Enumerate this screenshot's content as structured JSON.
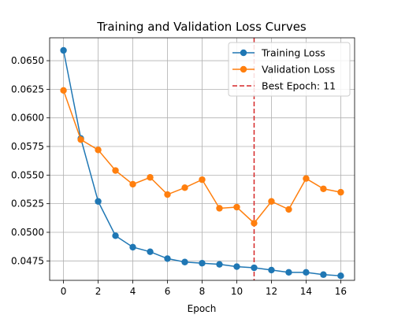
{
  "chart_data": {
    "type": "line",
    "title": "Training and Validation Loss Curves",
    "xlabel": "Epoch",
    "ylabel": "",
    "xlim": [
      -0.8,
      16.8
    ],
    "ylim": [
      0.0458,
      0.067
    ],
    "x_ticks": [
      0,
      2,
      4,
      6,
      8,
      10,
      12,
      14,
      16
    ],
    "x_tick_labels": [
      "0",
      "2",
      "4",
      "6",
      "8",
      "10",
      "12",
      "14",
      "16"
    ],
    "y_ticks": [
      0.0475,
      0.05,
      0.0525,
      0.055,
      0.0575,
      0.06,
      0.0625,
      0.065
    ],
    "y_tick_labels": [
      "0.0475",
      "0.0500",
      "0.0525",
      "0.0550",
      "0.0575",
      "0.0600",
      "0.0625",
      "0.0650"
    ],
    "grid": true,
    "legend_position": "top-right",
    "x": [
      0,
      1,
      2,
      3,
      4,
      5,
      6,
      7,
      8,
      9,
      10,
      11,
      12,
      13,
      14,
      15,
      16
    ],
    "series": [
      {
        "name": "Training Loss",
        "color": "#1f77b4",
        "marker": "circle",
        "values": [
          0.0659,
          0.0582,
          0.0527,
          0.0497,
          0.0487,
          0.0483,
          0.0477,
          0.0474,
          0.0473,
          0.0472,
          0.047,
          0.0469,
          0.0467,
          0.0465,
          0.0465,
          0.0463,
          0.0462
        ]
      },
      {
        "name": "Validation Loss",
        "color": "#ff7f0e",
        "marker": "circle",
        "values": [
          0.0624,
          0.0581,
          0.0572,
          0.0554,
          0.0542,
          0.0548,
          0.0533,
          0.0539,
          0.0546,
          0.0521,
          0.0522,
          0.0508,
          0.0527,
          0.052,
          0.0547,
          0.0538,
          0.0535
        ]
      }
    ],
    "reference_lines": [
      {
        "name": "Best Epoch: 11",
        "orientation": "vertical",
        "x": 11,
        "color": "#d62728",
        "style": "dashed"
      }
    ]
  }
}
